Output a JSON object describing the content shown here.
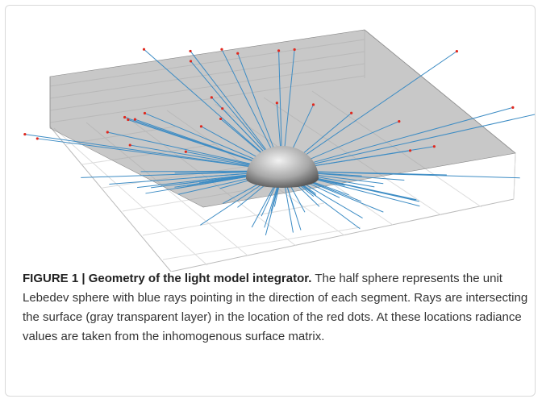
{
  "figure": {
    "caption": {
      "label": "FIGURE 1 | Geometry of the light model integrator.",
      "text": "The half sphere represents the unit Lebedev sphere with blue rays pointing in the direction of each segment. Rays are intersecting the surface (gray transparent layer) in the location of the red dots. At these locations radiance values are taken from the inhomogenous surface matrix."
    }
  }
}
